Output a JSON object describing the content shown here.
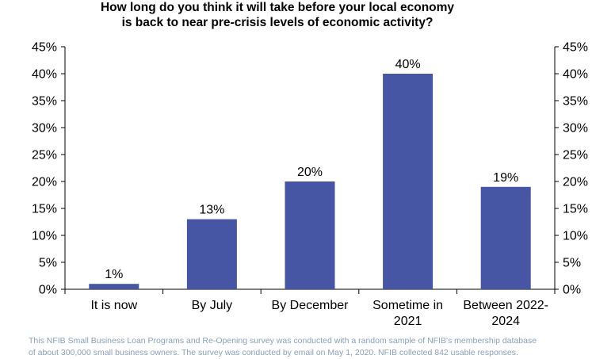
{
  "chart_data": {
    "type": "bar",
    "title_lines": [
      "How long do you think it will take before your local economy",
      "is back to near pre-crisis levels of economic activity?"
    ],
    "categories": [
      [
        "It is now"
      ],
      [
        "By July"
      ],
      [
        "By December"
      ],
      [
        "Sometime in",
        "2021"
      ],
      [
        "Between 2022-",
        "2024"
      ]
    ],
    "values": [
      1,
      13,
      20,
      40,
      19
    ],
    "data_labels": [
      "1%",
      "13%",
      "20%",
      "40%",
      "19%"
    ],
    "ylim": [
      0,
      45
    ],
    "yticks": [
      0,
      5,
      10,
      15,
      20,
      25,
      30,
      35,
      40,
      45
    ],
    "ytick_labels": [
      "0%",
      "5%",
      "10%",
      "15%",
      "20%",
      "25%",
      "30%",
      "35%",
      "40%",
      "45%"
    ],
    "secondary_axis": true,
    "grid": false,
    "bar_color": "#4756a4"
  },
  "footnote_lines": [
    "This NFIB Small Business Loan Programs and Re-Opening survey was conducted with a random sample of NFIB's membership database",
    "of about 300,000 small business owners. The survey was conducted by email on May 1, 2020. NFIB collected 842 usable responses."
  ]
}
